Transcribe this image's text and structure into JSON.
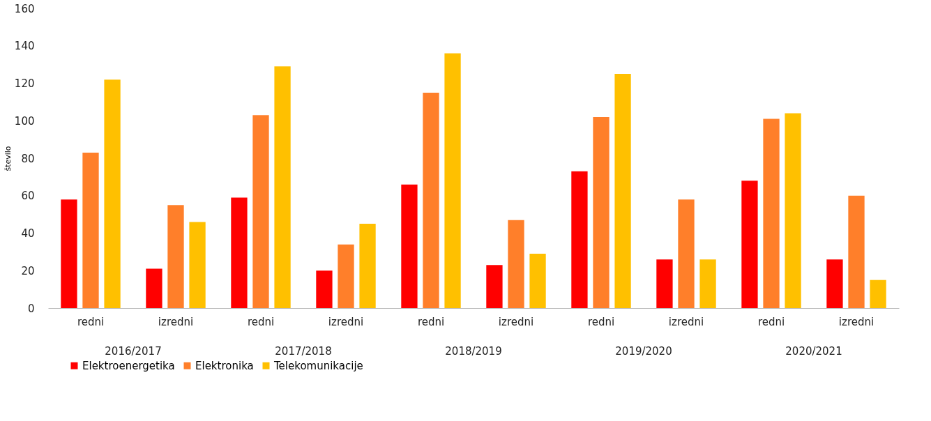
{
  "chart_data": {
    "type": "bar",
    "ylabel": "število",
    "categories": [
      "redni",
      "izredni",
      "redni",
      "izredni",
      "redni",
      "izredni",
      "redni",
      "izredni",
      "redni",
      "izredni"
    ],
    "annotations": [
      "2016/2017",
      "2017/2018",
      "2018/2019",
      "2019/2020",
      "2020/2021"
    ],
    "series": [
      {
        "name": "Elektroenergetika",
        "color": "#ff0000",
        "values": [
          58,
          21,
          59,
          20,
          66,
          23,
          73,
          26,
          68,
          26
        ]
      },
      {
        "name": "Elektronika",
        "color": "#ff7f2a",
        "values": [
          83,
          55,
          103,
          34,
          115,
          47,
          102,
          58,
          101,
          60
        ]
      },
      {
        "name": "Telekomunikacije",
        "color": "#ffc000",
        "values": [
          122,
          46,
          129,
          45,
          136,
          29,
          125,
          26,
          104,
          15
        ]
      }
    ],
    "ylim": [
      0,
      160
    ],
    "yticks": [
      0,
      20,
      40,
      60,
      80,
      100,
      120,
      140,
      160
    ],
    "grid": false,
    "legend": "bottom"
  }
}
